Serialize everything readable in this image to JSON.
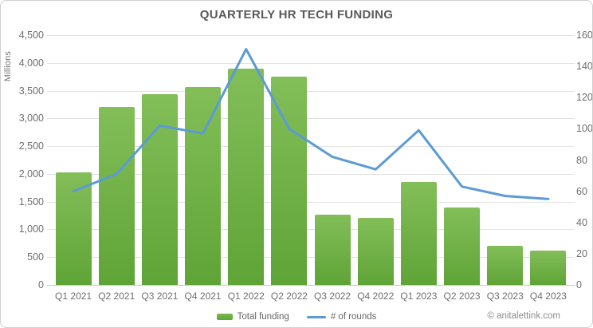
{
  "chart_data": {
    "type": "bar",
    "combo": true,
    "title": "QUARTERLY HR TECH FUNDING",
    "categories": [
      "Q1 2021",
      "Q2 2021",
      "Q3 2021",
      "Q4 2021",
      "Q1 2022",
      "Q2 2022",
      "Q3 2022",
      "Q4 2022",
      "Q1 2023",
      "Q2 2023",
      "Q3 2023",
      "Q4 2023"
    ],
    "series": [
      {
        "name": "Total funding",
        "type": "bar",
        "axis": "left",
        "values": [
          2025,
          3210,
          3430,
          3570,
          3900,
          3750,
          1260,
          1210,
          1850,
          1400,
          700,
          625
        ],
        "color_top": "#83be59",
        "color_bottom": "#5fa436"
      },
      {
        "name": "# of rounds",
        "type": "line",
        "axis": "right",
        "values": [
          60,
          71,
          102,
          97,
          151,
          100,
          82,
          74,
          99,
          63,
          57,
          55
        ],
        "color": "#5b9bd5"
      }
    ],
    "left_axis": {
      "label": "Millions",
      "min": 0,
      "max": 4500,
      "step": 500,
      "tick_labels": [
        "0",
        "500",
        "1,000",
        "1,500",
        "2,000",
        "2,500",
        "3,000",
        "3,500",
        "4,000",
        "4,500"
      ]
    },
    "right_axis": {
      "min": 0,
      "max": 160,
      "step": 20,
      "tick_labels": [
        "0",
        "20",
        "40",
        "60",
        "80",
        "100",
        "120",
        "140",
        "160"
      ]
    },
    "grid": true,
    "legend_position": "bottom"
  },
  "legend": {
    "bar_label": "Total funding",
    "line_label": "# of rounds"
  },
  "footer": {
    "credit": "© anitalettink.com"
  },
  "colors": {
    "bar_top": "#83be59",
    "bar_bottom": "#5fa436",
    "line": "#5b9bd5",
    "title_text": "#595959",
    "axis_text": "#6e6e6e",
    "gridline": "#e2e2e2"
  }
}
